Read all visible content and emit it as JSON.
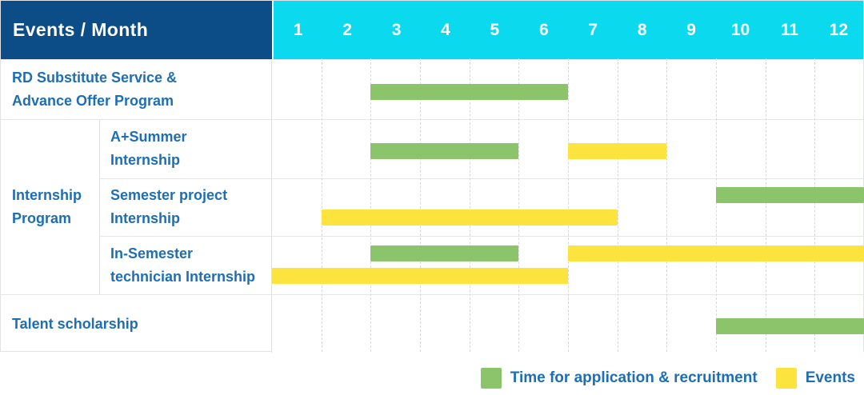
{
  "header": {
    "corner_label": "Events / Month",
    "months": [
      "1",
      "2",
      "3",
      "4",
      "5",
      "6",
      "7",
      "8",
      "9",
      "10",
      "11",
      "12"
    ]
  },
  "rows": [
    {
      "type": "simple",
      "label": [
        "RD Substitute Service &",
        "Advance Offer Program"
      ]
    },
    {
      "type": "group",
      "label": [
        "Internship",
        "Program"
      ],
      "children": [
        {
          "label": [
            "A+Summer",
            "Internship"
          ]
        },
        {
          "label": [
            "Semester project",
            "Internship"
          ]
        },
        {
          "label": [
            "In-Semester",
            "technician Internship"
          ]
        }
      ]
    },
    {
      "type": "simple",
      "label": [
        "Talent scholarship"
      ]
    }
  ],
  "chart_data": {
    "type": "gantt",
    "x_unit": "month",
    "x_ticks": [
      "1",
      "2",
      "3",
      "4",
      "5",
      "6",
      "7",
      "8",
      "9",
      "10",
      "11",
      "12"
    ],
    "x_range": [
      1,
      12
    ],
    "categories_legend": [
      {
        "name": "Time for application & recruitment",
        "color": "#8bc46a"
      },
      {
        "name": "Events",
        "color": "#fde33e"
      }
    ],
    "bars": [
      {
        "row_index": 0,
        "row": "RD Substitute Service & Advance Offer Program",
        "category": "application_recruitment",
        "start_month": 3,
        "end_month": 6,
        "track": "mid"
      },
      {
        "row_index": 1,
        "row": "A+Summer Internship",
        "category": "application_recruitment",
        "start_month": 3,
        "end_month": 5,
        "track": "mid"
      },
      {
        "row_index": 1,
        "row": "A+Summer Internship",
        "category": "events",
        "start_month": 7,
        "end_month": 8,
        "track": "mid"
      },
      {
        "row_index": 2,
        "row": "Semester project Internship",
        "category": "application_recruitment",
        "start_month": 10,
        "end_month": 12,
        "track": "top"
      },
      {
        "row_index": 2,
        "row": "Semester project Internship",
        "category": "events",
        "start_month": 2,
        "end_month": 7,
        "track": "bottom"
      },
      {
        "row_index": 3,
        "row": "In-Semester technician Internship",
        "category": "application_recruitment",
        "start_month": 3,
        "end_month": 5,
        "track": "top"
      },
      {
        "row_index": 3,
        "row": "In-Semester technician Internship",
        "category": "events",
        "start_month": 7,
        "end_month": 12,
        "track": "top"
      },
      {
        "row_index": 3,
        "row": "In-Semester technician Internship",
        "category": "events",
        "start_month": 1,
        "end_month": 6,
        "track": "bottom"
      },
      {
        "row_index": 4,
        "row": "Talent scholarship",
        "category": "application_recruitment",
        "start_month": 10,
        "end_month": 12,
        "track": "mid"
      }
    ]
  },
  "legend": [
    {
      "swatch_color": "#8bc46a",
      "label": "Time for application & recruitment"
    },
    {
      "swatch_color": "#fde33e",
      "label": "Events"
    }
  ],
  "colors": {
    "header_navy": "#0d4d87",
    "header_cyan": "#0bd9ee",
    "label_blue": "#1d6eb5",
    "green": "#8bc46a",
    "yellow": "#fde33e"
  }
}
